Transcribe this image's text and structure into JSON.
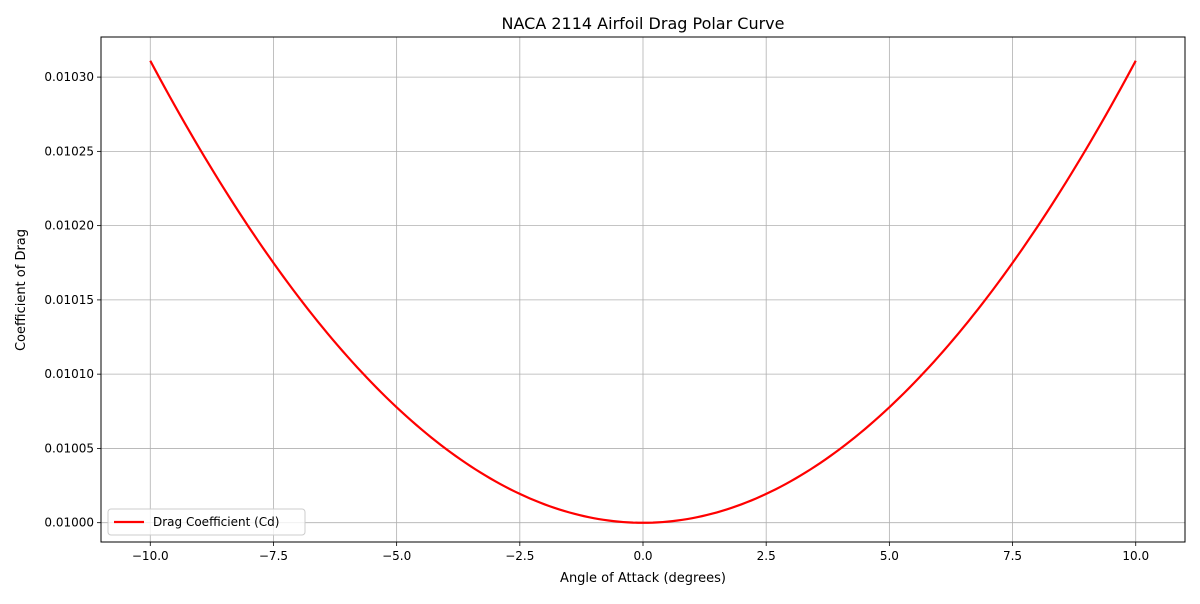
{
  "chart_data": {
    "type": "line",
    "title": "NACA 2114 Airfoil Drag Polar Curve",
    "xlabel": "Angle of Attack (degrees)",
    "ylabel": "Coefficient of Drag",
    "xlim": [
      -11.0,
      11.0
    ],
    "ylim": [
      0.009987,
      0.010327
    ],
    "grid": true,
    "legend_position": "lower-left",
    "x_ticks": [
      -10.0,
      -7.5,
      -5.0,
      -2.5,
      0.0,
      2.5,
      5.0,
      7.5,
      10.0
    ],
    "x_tick_labels": [
      "−10.0",
      "−7.5",
      "−5.0",
      "−2.5",
      "0.0",
      "2.5",
      "5.0",
      "7.5",
      "10.0"
    ],
    "y_ticks": [
      0.01,
      0.01005,
      0.0101,
      0.01015,
      0.0102,
      0.01025,
      0.0103
    ],
    "y_tick_labels": [
      "0.01000",
      "0.01005",
      "0.01010",
      "0.01015",
      "0.01020",
      "0.01025",
      "0.01030"
    ],
    "series": [
      {
        "name": "Drag Coefficient (Cd)",
        "color": "#ff0000",
        "x": [
          -10,
          -9,
          -8,
          -7,
          -6,
          -5,
          -4,
          -3,
          -2,
          -1,
          0,
          1,
          2,
          3,
          4,
          5,
          6,
          7,
          8,
          9,
          10
        ],
        "y": [
          0.010311,
          0.010252,
          0.010199,
          0.010152,
          0.010112,
          0.010078,
          0.01005,
          0.010028,
          0.010012,
          0.010003,
          0.01,
          0.010003,
          0.010012,
          0.010028,
          0.01005,
          0.010078,
          0.010112,
          0.010152,
          0.010199,
          0.010252,
          0.010311
        ]
      }
    ]
  }
}
